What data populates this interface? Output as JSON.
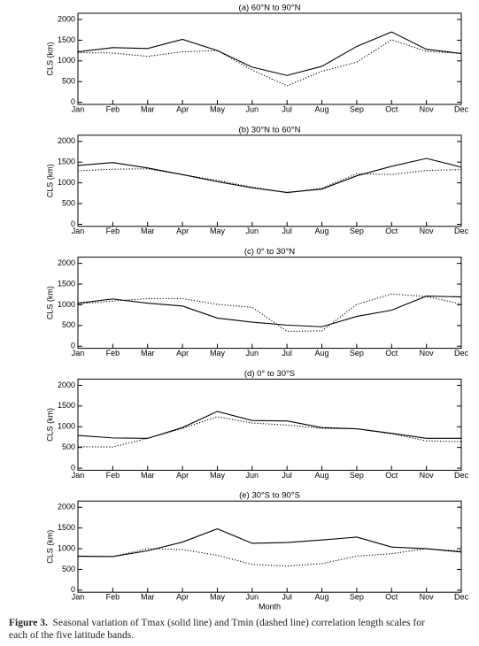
{
  "chart_data": [
    {
      "type": "line",
      "title": "(a) 60°N to 90°N",
      "ylabel": "CLS (km)",
      "categories": [
        "Jan",
        "Feb",
        "Mar",
        "Apr",
        "May",
        "Jun",
        "Jul",
        "Aug",
        "Sep",
        "Oct",
        "Nov",
        "Dec"
      ],
      "ylim": [
        -50,
        2150
      ],
      "yticks": [
        0,
        500,
        1000,
        1500,
        2000
      ],
      "series": [
        {
          "color": "#000000",
          "style": "solid",
          "values": [
            1220,
            1320,
            1300,
            1520,
            1250,
            850,
            650,
            870,
            1350,
            1700,
            1280,
            1180
          ]
        },
        {
          "color": "#000000",
          "style": "dotted",
          "values": [
            1200,
            1190,
            1110,
            1220,
            1250,
            780,
            400,
            750,
            970,
            1510,
            1230,
            1180
          ]
        }
      ]
    },
    {
      "type": "line",
      "title": "(b) 30°N to 60°N",
      "ylabel": "CLS (km)",
      "categories": [
        "Jan",
        "Feb",
        "Mar",
        "Apr",
        "May",
        "Jun",
        "Jul",
        "Aug",
        "Sep",
        "Oct",
        "Nov",
        "Dec"
      ],
      "ylim": [
        -50,
        2150
      ],
      "yticks": [
        0,
        500,
        1000,
        1500,
        2000
      ],
      "series": [
        {
          "color": "#000000",
          "style": "solid",
          "values": [
            1420,
            1490,
            1360,
            1200,
            1030,
            880,
            770,
            850,
            1170,
            1400,
            1590,
            1380
          ]
        },
        {
          "color": "#000000",
          "style": "dotted",
          "values": [
            1290,
            1330,
            1340,
            1200,
            1060,
            900,
            760,
            870,
            1220,
            1200,
            1300,
            1320
          ]
        }
      ]
    },
    {
      "type": "line",
      "title": "(c) 0° to 30°N",
      "ylabel": "CLS (km)",
      "categories": [
        "Jan",
        "Feb",
        "Mar",
        "Apr",
        "May",
        "Jun",
        "Jul",
        "Aug",
        "Sep",
        "Oct",
        "Nov",
        "Dec"
      ],
      "ylim": [
        -50,
        2150
      ],
      "yticks": [
        0,
        500,
        1000,
        1500,
        2000
      ],
      "series": [
        {
          "color": "#000000",
          "style": "solid",
          "values": [
            1040,
            1140,
            1040,
            970,
            680,
            580,
            510,
            470,
            720,
            870,
            1210,
            1190
          ]
        },
        {
          "color": "#000000",
          "style": "dotted",
          "values": [
            1020,
            1090,
            1150,
            1150,
            1010,
            940,
            360,
            370,
            1010,
            1260,
            1200,
            1020
          ]
        }
      ]
    },
    {
      "type": "line",
      "title": "(d) 0° to 30°S",
      "ylabel": "CLS (km)",
      "categories": [
        "Jan",
        "Feb",
        "Mar",
        "Apr",
        "May",
        "Jun",
        "Jul",
        "Aug",
        "Sep",
        "Oct",
        "Nov",
        "Dec"
      ],
      "ylim": [
        -50,
        2150
      ],
      "yticks": [
        0,
        500,
        1000,
        1500,
        2000
      ],
      "series": [
        {
          "color": "#000000",
          "style": "solid",
          "values": [
            790,
            730,
            720,
            980,
            1370,
            1150,
            1140,
            980,
            950,
            840,
            720,
            720
          ]
        },
        {
          "color": "#000000",
          "style": "dotted",
          "values": [
            520,
            510,
            720,
            960,
            1240,
            1090,
            1040,
            960,
            950,
            830,
            660,
            640
          ]
        }
      ]
    },
    {
      "type": "line",
      "title": "(e) 30°S to 90°S",
      "ylabel": "CLS (km)",
      "xlabel": "Month",
      "categories": [
        "Jan",
        "Feb",
        "Mar",
        "Apr",
        "May",
        "Jun",
        "Jul",
        "Aug",
        "Sep",
        "Oct",
        "Nov",
        "Dec"
      ],
      "ylim": [
        -50,
        2150
      ],
      "yticks": [
        0,
        500,
        1000,
        1500,
        2000
      ],
      "series": [
        {
          "color": "#000000",
          "style": "solid",
          "values": [
            820,
            810,
            950,
            1160,
            1480,
            1130,
            1150,
            1210,
            1280,
            1040,
            1000,
            920
          ]
        },
        {
          "color": "#000000",
          "style": "dotted",
          "values": [
            810,
            810,
            1000,
            980,
            840,
            620,
            580,
            640,
            820,
            880,
            1000,
            940
          ]
        }
      ]
    }
  ],
  "caption": {
    "label": "Figure 3.",
    "line1": "Seasonal variation of Tmax (solid line) and Tmin (dashed line) correlation length scales for",
    "line2": "each of the five latitude bands."
  }
}
